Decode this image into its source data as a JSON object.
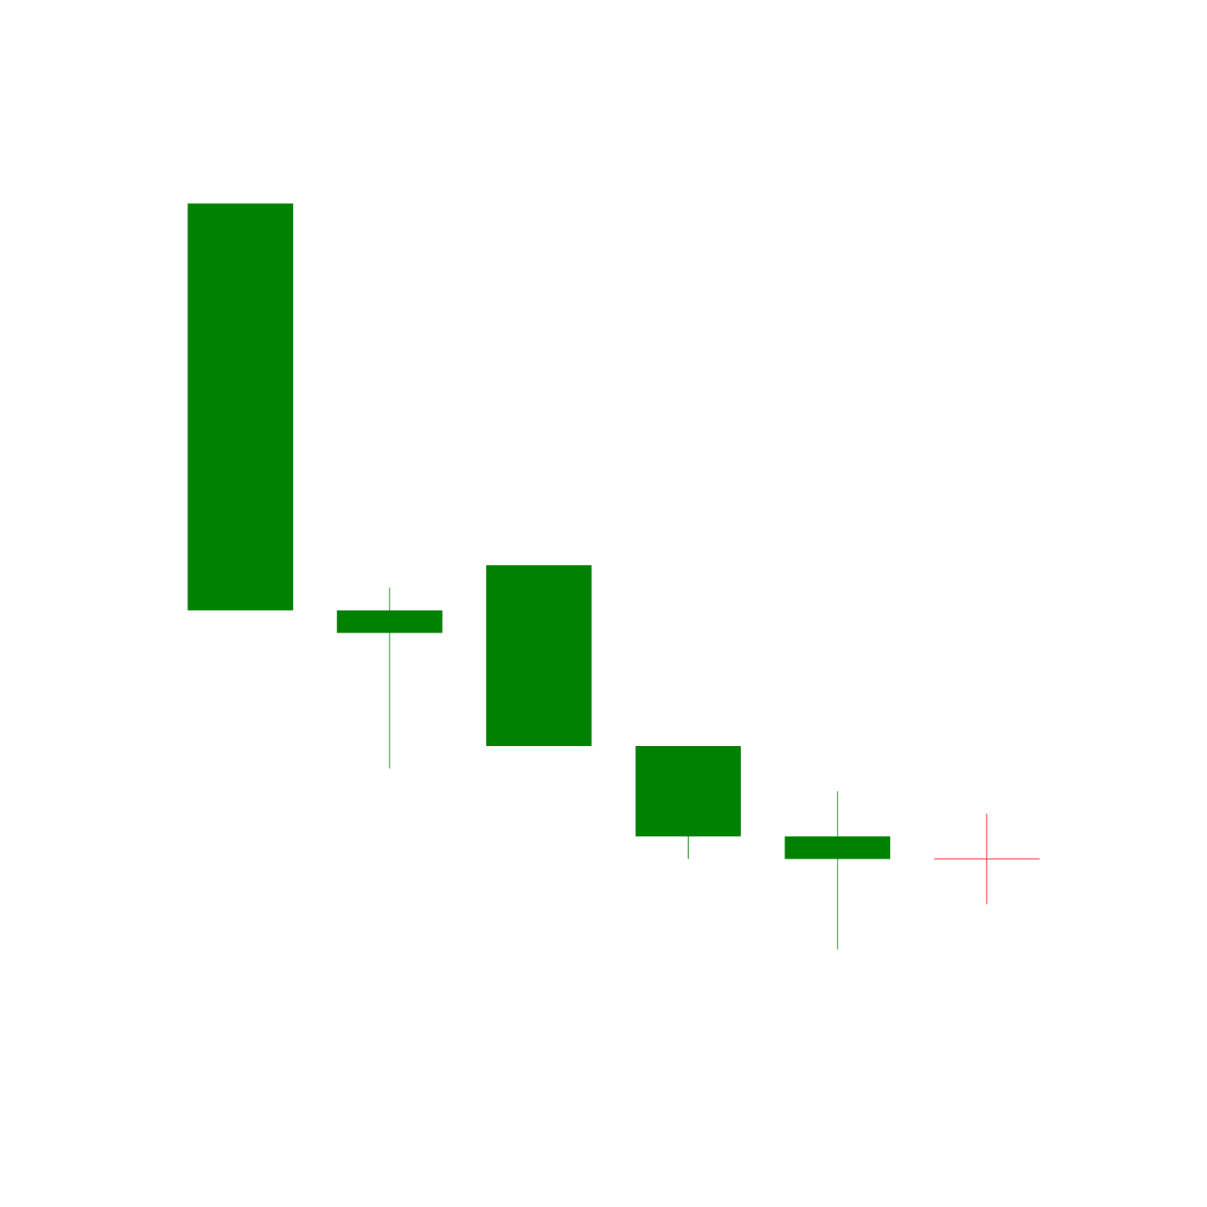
{
  "chart_data": {
    "type": "candlestick",
    "title": "",
    "xlabel": "",
    "ylabel": "",
    "axes_visible": false,
    "grid": false,
    "legend": "none",
    "ylim": [
      -40,
      500
    ],
    "colors": {
      "up": "#008000",
      "down": "#ff0000"
    },
    "candles": [
      {
        "index": 0,
        "open": 230,
        "close": 410,
        "high": 410,
        "low": 230,
        "direction": "up"
      },
      {
        "index": 1,
        "open": 220,
        "close": 230,
        "high": 240,
        "low": 160,
        "direction": "up"
      },
      {
        "index": 2,
        "open": 170,
        "close": 250,
        "high": 250,
        "low": 170,
        "direction": "up"
      },
      {
        "index": 3,
        "open": 130,
        "close": 170,
        "high": 170,
        "low": 120,
        "direction": "up"
      },
      {
        "index": 4,
        "open": 120,
        "close": 130,
        "high": 150,
        "low": 80,
        "direction": "up"
      },
      {
        "index": 5,
        "open": 120,
        "close": 120,
        "high": 140,
        "low": 100,
        "direction": "down"
      }
    ]
  }
}
